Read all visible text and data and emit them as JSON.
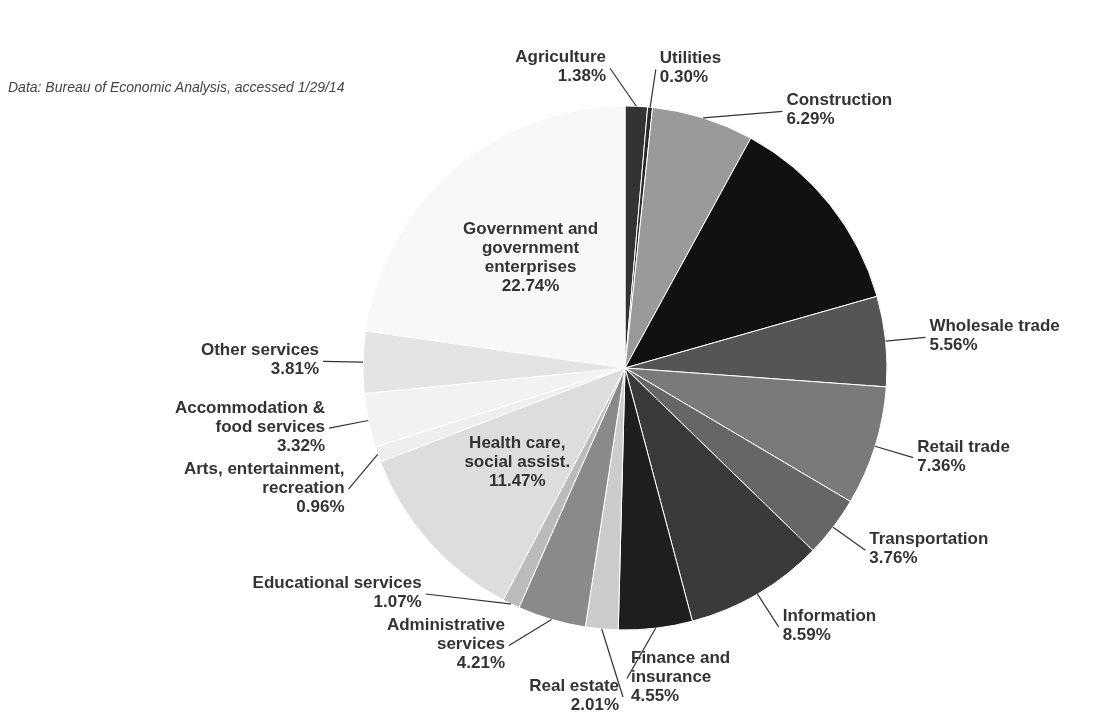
{
  "chart_data": {
    "type": "pie",
    "categories": [
      "Agriculture",
      "Utilities",
      "Construction",
      null,
      "Wholesale trade",
      "Retail trade",
      "Transportation",
      "Information",
      "Finance and\ninsurance",
      "Real estate",
      "Administrative\nservices",
      "Educational services",
      "Health care,\nsocial assist.",
      "Arts, entertainment,\nrecreation",
      "Accommodation &\nfood services",
      "Other services",
      "Government and\ngovernment\nenterprises"
    ],
    "values": [
      1.38,
      0.3,
      6.29,
      12.62,
      5.56,
      7.36,
      3.76,
      8.59,
      4.55,
      2.01,
      4.21,
      1.07,
      11.47,
      0.96,
      3.32,
      3.81,
      22.74
    ],
    "value_labels": [
      "1.38%",
      "0.30%",
      "6.29%",
      null,
      "5.56%",
      "7.36%",
      "3.76%",
      "8.59%",
      "4.55%",
      "2.01%",
      "4.21%",
      "1.07%",
      "11.47%",
      "0.96%",
      "3.32%",
      "3.81%",
      "22.74%"
    ],
    "colors": [
      "#333333",
      "#2a2a2a",
      "#9a9a9a",
      "#111111",
      "#555555",
      "#7a7a7a",
      "#666666",
      "#3a3a3a",
      "#1e1e1e",
      "#cccccc",
      "#8a8a8a",
      "#bbbbbb",
      "#dddddd",
      "#eeeeee",
      "#f2f2f2",
      "#e4e4e4",
      "#f8f8f8"
    ],
    "annotations": [
      "Data: Bureau of Economic Analysis, accessed 1/29/14"
    ]
  }
}
